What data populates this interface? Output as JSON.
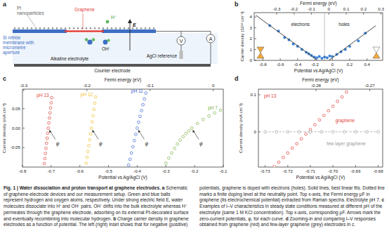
{
  "schematic": {
    "panel_label": "a",
    "labels": {
      "pt": [
        "Pt",
        "nanoparticles"
      ],
      "graphene": "Graphene",
      "proton": "H⁺",
      "field": "E",
      "membrane": [
        "Si nitride",
        "membrane with",
        "micrometre",
        "aperture"
      ],
      "hydroxide": "OH⁻",
      "electrolyte": "Alkaline electrolyte",
      "reference": "AgCl reference",
      "counter": "Counter electrode",
      "voltmeter": "V",
      "ammeter": "A"
    }
  },
  "chart_data": [
    {
      "panel_label": "b",
      "type": "scatter",
      "x_label": "Potential vs Ag/AgCl (V)",
      "x2_label": "Fermi energy (eV)",
      "y_label": "Carrier density (10¹² cm⁻²)",
      "xlim": [
        -0.9,
        0.58
      ],
      "xticks": [
        -0.8,
        -0.6,
        -0.4,
        -0.2,
        0,
        0.2,
        0.4
      ],
      "x2lim": [
        -0.43,
        0.31
      ],
      "x2ticks": [
        -0.3,
        -0.2,
        -0.1,
        0,
        0.1,
        0.2,
        0.3
      ],
      "ylim": [
        0,
        4.4
      ],
      "yticks": [
        0,
        1,
        2,
        3,
        4
      ],
      "annotations": [
        "electrons",
        "holes"
      ],
      "series": [
        {
          "type": "scatter",
          "color": "#3b82d6",
          "marker": "dot",
          "x": [
            -0.72,
            -0.62,
            -0.55,
            -0.5,
            -0.45,
            -0.4,
            -0.35,
            -0.3,
            -0.27,
            -0.24,
            -0.21,
            -0.18,
            -0.15,
            -0.12,
            -0.09,
            -0.06,
            -0.03,
            0.0,
            0.05,
            0.1,
            0.15,
            0.2,
            0.3,
            0.38
          ],
          "values": [
            3.2,
            2.7,
            2.1,
            1.9,
            1.5,
            1.3,
            1.0,
            0.75,
            0.6,
            0.45,
            0.3,
            0.25,
            0.35,
            0.2,
            0.3,
            0.25,
            0.4,
            0.35,
            0.55,
            0.8,
            1.0,
            1.3,
            1.8,
            2.5
          ]
        },
        {
          "type": "line",
          "color": "#333333",
          "line_style": "solid",
          "x": [
            -0.88,
            -0.17
          ],
          "values": [
            4.15,
            0
          ]
        },
        {
          "type": "line",
          "color": "#333333",
          "line_style": "solid",
          "x": [
            -0.04,
            0.5
          ],
          "values": [
            0,
            3.2
          ]
        },
        {
          "type": "line",
          "color": "#555555",
          "line_style": "dotted",
          "x": [
            -0.09,
            -0.09
          ],
          "values": [
            0,
            4.4
          ]
        }
      ]
    },
    {
      "panel_label": "c",
      "type": "scatter",
      "x_label": "Potential vs Ag/AgCl (V)",
      "x2_label": "Fermi energy (eV)",
      "y_label": "Current density (mA cm⁻²)",
      "xlim": [
        -0.8,
        -0.1
      ],
      "xticks": [
        -0.8,
        -0.7,
        -0.6,
        -0.5,
        -0.4,
        -0.3,
        -0.2,
        -0.1
      ],
      "x2lim": [
        -0.302,
        0.016
      ],
      "x2ticks": [
        -0.3,
        -0.2,
        -0.1,
        0
      ],
      "ylim": [
        -0.1,
        0.1
      ],
      "yticks": [
        -0.05,
        {
          "value": 0,
          "label": "0.00"
        },
        0.05
      ],
      "phi_label": "φ",
      "series": [
        {
          "name": "pH 13",
          "color": "#e0413a",
          "marker": "circle",
          "phi": -0.71,
          "x": [
            -0.724,
            -0.722,
            -0.72,
            -0.718,
            -0.716,
            -0.714,
            -0.712,
            -0.71,
            -0.708,
            -0.706,
            -0.704,
            -0.702,
            -0.7,
            -0.698
          ],
          "values": [
            -0.091,
            -0.078,
            -0.065,
            -0.052,
            -0.039,
            -0.026,
            -0.013,
            0,
            0.013,
            0.026,
            0.039,
            0.052,
            0.065,
            0.078
          ]
        },
        {
          "name": "pH 12",
          "color": "#f0bf2a",
          "marker": "circle",
          "phi": -0.56,
          "x": [
            -0.578,
            -0.575,
            -0.572,
            -0.569,
            -0.566,
            -0.563,
            -0.56,
            -0.557,
            -0.554,
            -0.551,
            -0.548,
            -0.545
          ],
          "values": [
            -0.09,
            -0.075,
            -0.06,
            -0.045,
            -0.03,
            -0.015,
            0,
            0.016,
            0.032,
            0.048,
            0.064,
            0.08
          ]
        },
        {
          "name": "pH 11",
          "color": "#3a63d1",
          "marker": "circle",
          "phi": -0.4,
          "x": [
            -0.43,
            -0.425,
            -0.42,
            -0.415,
            -0.41,
            -0.405,
            -0.4,
            -0.395,
            -0.39,
            -0.385,
            -0.38,
            -0.375,
            -0.37
          ],
          "values": [
            -0.095,
            -0.08,
            -0.064,
            -0.048,
            -0.032,
            -0.016,
            0,
            0.015,
            0.03,
            0.045,
            0.06,
            0.075,
            0.09
          ]
        },
        {
          "name": "pH 7",
          "color": "#7cb342",
          "marker": "circle",
          "phi": -0.21,
          "x": [
            -0.3,
            -0.29,
            -0.28,
            -0.27,
            -0.26,
            -0.25,
            -0.24,
            -0.23,
            -0.22,
            -0.21,
            -0.19,
            -0.17,
            -0.15,
            -0.13,
            -0.11
          ],
          "values": [
            -0.09,
            -0.077,
            -0.064,
            -0.052,
            -0.041,
            -0.031,
            -0.022,
            -0.014,
            -0.007,
            0,
            0.012,
            0.022,
            0.031,
            0.039,
            0.046
          ]
        }
      ]
    },
    {
      "panel_label": "d",
      "type": "scatter",
      "x_label": "Potential vs Ag/AgCl (V)",
      "x2_label": "Fermi energy (eV)",
      "y_label": "Current density (mA cm⁻²)",
      "xlim": [
        -0.733,
        -0.678
      ],
      "xticks": [
        -0.73,
        -0.72,
        -0.71,
        {
          "value": -0.7,
          "label": "-0.70"
        },
        -0.69,
        -0.68
      ],
      "x2lim": [
        -0.2907,
        -0.2676
      ],
      "x2ticks": [
        -0.28,
        -0.27
      ],
      "ylim": [
        -0.095,
        0.115
      ],
      "yticks": [
        0,
        0.1
      ],
      "annotations": [
        "pH 13"
      ],
      "series": [
        {
          "name": "graphene",
          "color": "#e0413a",
          "marker": "circle",
          "x": [
            -0.726,
            -0.724,
            -0.722,
            -0.72,
            -0.718,
            -0.716,
            -0.714,
            -0.712,
            -0.71,
            -0.708,
            -0.706,
            -0.704,
            -0.702,
            -0.7,
            -0.698,
            -0.696,
            -0.694
          ],
          "values": [
            -0.094,
            -0.082,
            -0.069,
            -0.057,
            -0.044,
            -0.032,
            -0.019,
            -0.006,
            0.006,
            0.019,
            0.032,
            0.044,
            0.057,
            0.069,
            0.082,
            0.094,
            0.107
          ]
        },
        {
          "name": "few layer graphene",
          "color": "#9a9a9a",
          "marker": "circle",
          "line_style": "dashed",
          "x": [
            -0.73,
            -0.725,
            -0.72,
            -0.715,
            -0.71,
            -0.705,
            -0.7,
            -0.695,
            -0.69,
            -0.685,
            -0.68
          ],
          "values": [
            0,
            0,
            0,
            0,
            0,
            0,
            0,
            0,
            0,
            0,
            0
          ]
        }
      ]
    }
  ],
  "caption": {
    "title": "Fig. 1 | Water dissociation and proton transport at graphene electrodes.",
    "parts": [
      {
        "label": "a",
        "text": "Schematic of graphene-electrode devices and our measurement setup. Green and blue balls represent hydrogen and oxygen atoms, respectively. Under strong electric field E, water molecules dissociate into H⁺ and OH⁻ pairs. OH⁻ drifts into the bulk electrolyte whereas H⁺ permeates through the graphene electrode, adsorbing on its external Pt-decorated surface and eventually recombining into molecular hydrogen."
      },
      {
        "label": "b",
        "text": "Charge carrier density in graphene electrodes as a function of potential. The left (right) inset shows that for negative (positive) potentials, graphene is doped with electrons (holes). Solid lines, best linear fits. Dotted line marks a finite doping level at the neutrality point. Top x-axis, the Fermi energy μF in graphene (its electrochemical potential) extracted from Raman spectra. Electrolyte pH 7."
      },
      {
        "label": "c",
        "text": "Examples of I–V characteristics in steady state conditions measured at different pH of the electrolyte (same 1 M KCl concentration). Top x-axis, corresponding μF. Arrows mark the zero-current potentials, φ, for each curve."
      },
      {
        "label": "d",
        "text": "Zooming-in and comparing I–V responses obtained from graphene (red) and few-layer graphene (grey) electrodes in c."
      }
    ]
  }
}
